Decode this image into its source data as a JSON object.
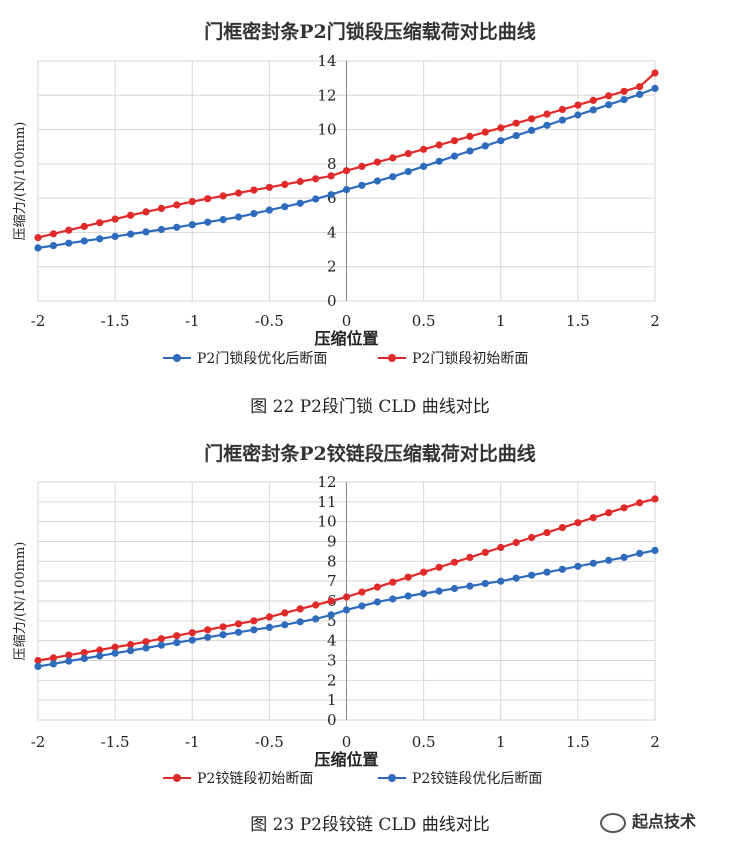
{
  "figures": [
    {
      "caption": "图 22  P2段门锁 CLD 曲线对比"
    },
    {
      "caption": "图 23  P2段铰链 CLD 曲线对比"
    }
  ],
  "watermark": "起点技术",
  "chart_data": [
    {
      "type": "line",
      "title": "门框密封条P2门锁段压缩载荷对比曲线",
      "xlabel": "压缩位置",
      "ylabel": "压缩力/(N/100mm)",
      "xlim": [
        -2,
        2
      ],
      "ylim": [
        0,
        14
      ],
      "xticks": [
        "-2",
        "-1.5",
        "-1",
        "-0.5",
        "0",
        "0.5",
        "1",
        "1.5",
        "2"
      ],
      "yticks": [
        "0",
        "2",
        "4",
        "6",
        "8",
        "10",
        "12",
        "14"
      ],
      "grid": true,
      "legend_position": "bottom",
      "x": [
        -2,
        -1.9,
        -1.8,
        -1.7,
        -1.6,
        -1.5,
        -1.4,
        -1.3,
        -1.2,
        -1.1,
        -1,
        -0.9,
        -0.8,
        -0.7,
        -0.6,
        -0.5,
        -0.4,
        -0.3,
        -0.2,
        -0.1,
        0,
        0.1,
        0.2,
        0.3,
        0.4,
        0.5,
        0.6,
        0.7,
        0.8,
        0.9,
        1,
        1.1,
        1.2,
        1.3,
        1.4,
        1.5,
        1.6,
        1.7,
        1.8,
        1.9,
        2
      ],
      "series": [
        {
          "name": "P2门锁段优化后断面",
          "color": "#2e6bbd",
          "values": [
            3.1,
            3.23,
            3.37,
            3.5,
            3.63,
            3.77,
            3.9,
            4.03,
            4.17,
            4.3,
            4.45,
            4.6,
            4.75,
            4.9,
            5.1,
            5.3,
            5.5,
            5.7,
            5.95,
            6.2,
            6.5,
            6.75,
            7.0,
            7.25,
            7.55,
            7.85,
            8.15,
            8.45,
            8.75,
            9.05,
            9.35,
            9.65,
            9.95,
            10.25,
            10.55,
            10.85,
            11.15,
            11.45,
            11.75,
            12.05,
            12.4
          ]
        },
        {
          "name": "P2门锁段初始断面",
          "color": "#e02a2a",
          "values": [
            3.7,
            3.92,
            4.13,
            4.35,
            4.57,
            4.78,
            5.0,
            5.2,
            5.4,
            5.6,
            5.8,
            5.97,
            6.13,
            6.3,
            6.47,
            6.63,
            6.8,
            6.97,
            7.13,
            7.3,
            7.6,
            7.85,
            8.1,
            8.35,
            8.6,
            8.85,
            9.1,
            9.35,
            9.6,
            9.85,
            10.1,
            10.37,
            10.63,
            10.9,
            11.17,
            11.43,
            11.7,
            11.97,
            12.23,
            12.5,
            13.3
          ]
        }
      ]
    },
    {
      "type": "line",
      "title": "门框密封条P2铰链段压缩载荷对比曲线",
      "xlabel": "压缩位置",
      "ylabel": "压缩力/(N/100mm)",
      "xlim": [
        -2,
        2
      ],
      "ylim": [
        0,
        12
      ],
      "xticks": [
        "-2",
        "-1.5",
        "-1",
        "-0.5",
        "0",
        "0.5",
        "1",
        "1.5",
        "2"
      ],
      "yticks": [
        "0",
        "1",
        "2",
        "3",
        "4",
        "5",
        "6",
        "7",
        "8",
        "9",
        "10",
        "11",
        "12"
      ],
      "grid": true,
      "legend_position": "bottom",
      "x": [
        -2,
        -1.9,
        -1.8,
        -1.7,
        -1.6,
        -1.5,
        -1.4,
        -1.3,
        -1.2,
        -1.1,
        -1,
        -0.9,
        -0.8,
        -0.7,
        -0.6,
        -0.5,
        -0.4,
        -0.3,
        -0.2,
        -0.1,
        0,
        0.1,
        0.2,
        0.3,
        0.4,
        0.5,
        0.6,
        0.7,
        0.8,
        0.9,
        1,
        1.1,
        1.2,
        1.3,
        1.4,
        1.5,
        1.6,
        1.7,
        1.8,
        1.9,
        2
      ],
      "series": [
        {
          "name": "P2铰链段初始断面",
          "color": "#e02a2a",
          "values": [
            3.0,
            3.13,
            3.27,
            3.4,
            3.53,
            3.67,
            3.8,
            3.95,
            4.1,
            4.25,
            4.4,
            4.55,
            4.7,
            4.85,
            5.0,
            5.2,
            5.4,
            5.6,
            5.8,
            6.0,
            6.2,
            6.45,
            6.7,
            6.95,
            7.2,
            7.45,
            7.7,
            7.95,
            8.2,
            8.45,
            8.7,
            8.95,
            9.2,
            9.45,
            9.7,
            9.95,
            10.2,
            10.45,
            10.7,
            10.95,
            11.15
          ]
        },
        {
          "name": "P2铰链段优化后断面",
          "color": "#2e6bbd",
          "values": [
            2.7,
            2.83,
            2.97,
            3.1,
            3.23,
            3.37,
            3.5,
            3.63,
            3.77,
            3.9,
            4.03,
            4.17,
            4.3,
            4.42,
            4.55,
            4.67,
            4.8,
            4.95,
            5.1,
            5.3,
            5.55,
            5.75,
            5.95,
            6.1,
            6.25,
            6.38,
            6.5,
            6.63,
            6.75,
            6.88,
            7.0,
            7.15,
            7.3,
            7.45,
            7.6,
            7.75,
            7.9,
            8.05,
            8.2,
            8.4,
            8.55
          ]
        }
      ]
    }
  ]
}
